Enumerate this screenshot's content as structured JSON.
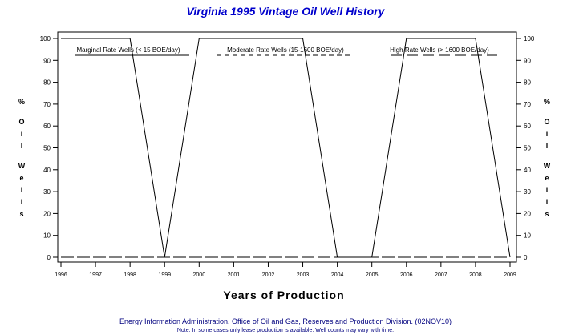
{
  "chart_data": {
    "type": "line",
    "title": "Virginia 1995 Vintage Oil Well History",
    "xlabel": "Years of Production",
    "ylabel_left": "% Oil Wells",
    "ylabel_right": "% Oil Wells",
    "xlim": [
      1996,
      2009
    ],
    "ylim": [
      0,
      100
    ],
    "x_ticks": [
      "1996",
      "1997",
      "1998",
      "1999",
      "2000",
      "2001",
      "2002",
      "2003",
      "2004",
      "2005",
      "2006",
      "2007",
      "2008",
      "2009"
    ],
    "y_ticks": [
      "0",
      "10",
      "20",
      "30",
      "40",
      "50",
      "60",
      "70",
      "80",
      "90",
      "100"
    ],
    "series": [
      {
        "name": "Marginal Rate Wells (<  15 BOE/day)",
        "style": "solid",
        "x": [
          1996,
          1997,
          1998,
          1999,
          2000,
          2001,
          2002,
          2003,
          2004,
          2005,
          2006,
          2007,
          2008,
          2009
        ],
        "y": [
          100,
          100,
          100,
          0,
          100,
          100,
          100,
          100,
          0,
          0,
          100,
          100,
          100,
          0
        ]
      },
      {
        "name": "Moderate Rate Wells (15-1600 BOE/day)",
        "style": "dashed-short",
        "x": [
          1996,
          1997,
          1998,
          1999,
          2000,
          2001,
          2002,
          2003,
          2004,
          2005,
          2006,
          2007,
          2008,
          2009
        ],
        "y": [
          0,
          0,
          0,
          0,
          0,
          0,
          0,
          0,
          0,
          0,
          0,
          0,
          0,
          0
        ]
      },
      {
        "name": "High Rate Wells (> 1600 BOE/day)",
        "style": "dashed-long",
        "x": [
          1996,
          1997,
          1998,
          1999,
          2000,
          2001,
          2002,
          2003,
          2004,
          2005,
          2006,
          2007,
          2008,
          2009
        ],
        "y": [
          0,
          0,
          0,
          0,
          0,
          0,
          0,
          0,
          0,
          0,
          0,
          0,
          0,
          0
        ]
      }
    ],
    "grid": false,
    "legend_placement": "inside-top"
  },
  "footer": {
    "source": "Energy Information Administration, Office of Oil and Gas, Reserves and Production Division. (02NOV10)",
    "note": "Note: In some cases only lease production is available. Well counts may vary with time."
  },
  "colors": {
    "title": "#0000cc",
    "footer": "#00007f",
    "lines": "#000000"
  }
}
